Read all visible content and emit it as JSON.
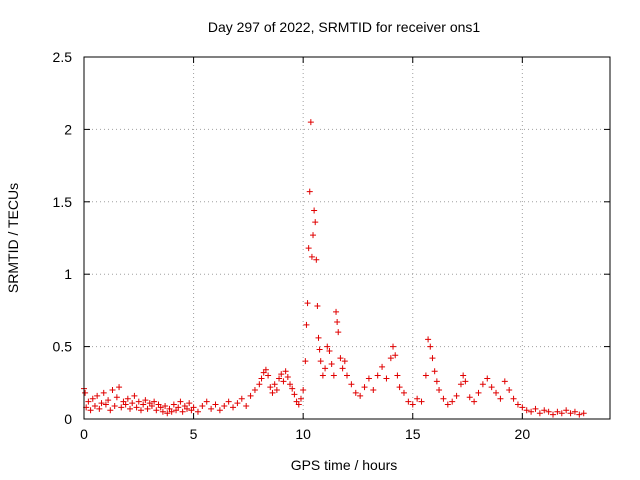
{
  "chart_data": {
    "type": "scatter",
    "title": "Day 297 of 2022, SRMTID for receiver ons1",
    "xlabel": "GPS time / hours",
    "ylabel": "SRMTID / TECUs",
    "xlim": [
      0,
      24
    ],
    "ylim": [
      0,
      2.5
    ],
    "xticks": [
      0,
      5,
      10,
      15,
      20
    ],
    "yticks": [
      0,
      0.5,
      1,
      1.5,
      2,
      2.5
    ],
    "ytick_labels": [
      "0",
      "0.5",
      "1",
      "1.5",
      "2",
      "2.5"
    ],
    "grid": true,
    "marker": "+",
    "series": [
      {
        "name": "ons1",
        "color": "#e00000",
        "points": [
          [
            0.0,
            0.21
          ],
          [
            0.05,
            0.18
          ],
          [
            0.1,
            0.08
          ],
          [
            0.2,
            0.12
          ],
          [
            0.3,
            0.06
          ],
          [
            0.4,
            0.14
          ],
          [
            0.5,
            0.09
          ],
          [
            0.6,
            0.16
          ],
          [
            0.7,
            0.07
          ],
          [
            0.8,
            0.11
          ],
          [
            0.9,
            0.18
          ],
          [
            1.0,
            0.1
          ],
          [
            1.1,
            0.13
          ],
          [
            1.2,
            0.06
          ],
          [
            1.3,
            0.2
          ],
          [
            1.4,
            0.09
          ],
          [
            1.5,
            0.15
          ],
          [
            1.6,
            0.22
          ],
          [
            1.7,
            0.08
          ],
          [
            1.8,
            0.12
          ],
          [
            1.9,
            0.1
          ],
          [
            2.0,
            0.14
          ],
          [
            2.1,
            0.07
          ],
          [
            2.2,
            0.11
          ],
          [
            2.3,
            0.16
          ],
          [
            2.4,
            0.08
          ],
          [
            2.5,
            0.12
          ],
          [
            2.6,
            0.06
          ],
          [
            2.7,
            0.1
          ],
          [
            2.8,
            0.13
          ],
          [
            2.9,
            0.07
          ],
          [
            3.0,
            0.11
          ],
          [
            3.1,
            0.09
          ],
          [
            3.2,
            0.12
          ],
          [
            3.3,
            0.06
          ],
          [
            3.4,
            0.1
          ],
          [
            3.5,
            0.08
          ],
          [
            3.6,
            0.05
          ],
          [
            3.7,
            0.09
          ],
          [
            3.8,
            0.04
          ],
          [
            3.9,
            0.07
          ],
          [
            4.0,
            0.05
          ],
          [
            4.1,
            0.1
          ],
          [
            4.2,
            0.06
          ],
          [
            4.3,
            0.08
          ],
          [
            4.4,
            0.12
          ],
          [
            4.5,
            0.05
          ],
          [
            4.6,
            0.09
          ],
          [
            4.7,
            0.07
          ],
          [
            4.8,
            0.11
          ],
          [
            4.9,
            0.06
          ],
          [
            5.0,
            0.08
          ],
          [
            5.2,
            0.05
          ],
          [
            5.4,
            0.09
          ],
          [
            5.6,
            0.12
          ],
          [
            5.8,
            0.07
          ],
          [
            6.0,
            0.1
          ],
          [
            6.2,
            0.06
          ],
          [
            6.4,
            0.09
          ],
          [
            6.6,
            0.12
          ],
          [
            6.8,
            0.08
          ],
          [
            7.0,
            0.11
          ],
          [
            7.2,
            0.14
          ],
          [
            7.4,
            0.09
          ],
          [
            7.6,
            0.16
          ],
          [
            7.8,
            0.2
          ],
          [
            8.0,
            0.24
          ],
          [
            8.1,
            0.28
          ],
          [
            8.2,
            0.32
          ],
          [
            8.3,
            0.34
          ],
          [
            8.4,
            0.3
          ],
          [
            8.5,
            0.22
          ],
          [
            8.6,
            0.18
          ],
          [
            8.7,
            0.24
          ],
          [
            8.8,
            0.2
          ],
          [
            8.9,
            0.28
          ],
          [
            9.0,
            0.31
          ],
          [
            9.1,
            0.26
          ],
          [
            9.2,
            0.33
          ],
          [
            9.3,
            0.29
          ],
          [
            9.4,
            0.24
          ],
          [
            9.5,
            0.21
          ],
          [
            9.6,
            0.17
          ],
          [
            9.7,
            0.12
          ],
          [
            9.8,
            0.1
          ],
          [
            9.9,
            0.14
          ],
          [
            10.0,
            0.2
          ],
          [
            10.1,
            0.4
          ],
          [
            10.15,
            0.65
          ],
          [
            10.2,
            0.8
          ],
          [
            10.25,
            1.18
          ],
          [
            10.3,
            1.57
          ],
          [
            10.35,
            2.05
          ],
          [
            10.4,
            1.12
          ],
          [
            10.45,
            1.27
          ],
          [
            10.5,
            1.44
          ],
          [
            10.55,
            1.36
          ],
          [
            10.6,
            1.1
          ],
          [
            10.65,
            0.78
          ],
          [
            10.7,
            0.56
          ],
          [
            10.75,
            0.48
          ],
          [
            10.8,
            0.4
          ],
          [
            10.9,
            0.3
          ],
          [
            11.0,
            0.35
          ],
          [
            11.1,
            0.5
          ],
          [
            11.2,
            0.47
          ],
          [
            11.3,
            0.38
          ],
          [
            11.4,
            0.3
          ],
          [
            11.5,
            0.74
          ],
          [
            11.55,
            0.67
          ],
          [
            11.6,
            0.6
          ],
          [
            11.7,
            0.42
          ],
          [
            11.8,
            0.35
          ],
          [
            11.9,
            0.4
          ],
          [
            12.0,
            0.3
          ],
          [
            12.2,
            0.24
          ],
          [
            12.4,
            0.18
          ],
          [
            12.6,
            0.16
          ],
          [
            12.8,
            0.22
          ],
          [
            13.0,
            0.28
          ],
          [
            13.2,
            0.2
          ],
          [
            13.4,
            0.3
          ],
          [
            13.6,
            0.36
          ],
          [
            13.8,
            0.28
          ],
          [
            14.0,
            0.42
          ],
          [
            14.1,
            0.5
          ],
          [
            14.2,
            0.44
          ],
          [
            14.3,
            0.3
          ],
          [
            14.4,
            0.22
          ],
          [
            14.6,
            0.18
          ],
          [
            14.8,
            0.12
          ],
          [
            15.0,
            0.1
          ],
          [
            15.2,
            0.14
          ],
          [
            15.4,
            0.12
          ],
          [
            15.6,
            0.3
          ],
          [
            15.7,
            0.55
          ],
          [
            15.8,
            0.5
          ],
          [
            15.9,
            0.42
          ],
          [
            16.0,
            0.33
          ],
          [
            16.1,
            0.26
          ],
          [
            16.2,
            0.2
          ],
          [
            16.4,
            0.14
          ],
          [
            16.6,
            0.1
          ],
          [
            16.8,
            0.12
          ],
          [
            17.0,
            0.16
          ],
          [
            17.2,
            0.24
          ],
          [
            17.3,
            0.3
          ],
          [
            17.4,
            0.26
          ],
          [
            17.6,
            0.15
          ],
          [
            17.8,
            0.12
          ],
          [
            18.0,
            0.18
          ],
          [
            18.2,
            0.24
          ],
          [
            18.4,
            0.28
          ],
          [
            18.6,
            0.22
          ],
          [
            18.8,
            0.18
          ],
          [
            19.0,
            0.14
          ],
          [
            19.2,
            0.26
          ],
          [
            19.4,
            0.2
          ],
          [
            19.6,
            0.14
          ],
          [
            19.8,
            0.1
          ],
          [
            20.0,
            0.08
          ],
          [
            20.2,
            0.06
          ],
          [
            20.4,
            0.05
          ],
          [
            20.6,
            0.07
          ],
          [
            20.8,
            0.04
          ],
          [
            21.0,
            0.06
          ],
          [
            21.2,
            0.05
          ],
          [
            21.4,
            0.03
          ],
          [
            21.6,
            0.05
          ],
          [
            21.8,
            0.04
          ],
          [
            22.0,
            0.06
          ],
          [
            22.2,
            0.04
          ],
          [
            22.4,
            0.05
          ],
          [
            22.6,
            0.03
          ],
          [
            22.8,
            0.04
          ]
        ]
      }
    ]
  }
}
